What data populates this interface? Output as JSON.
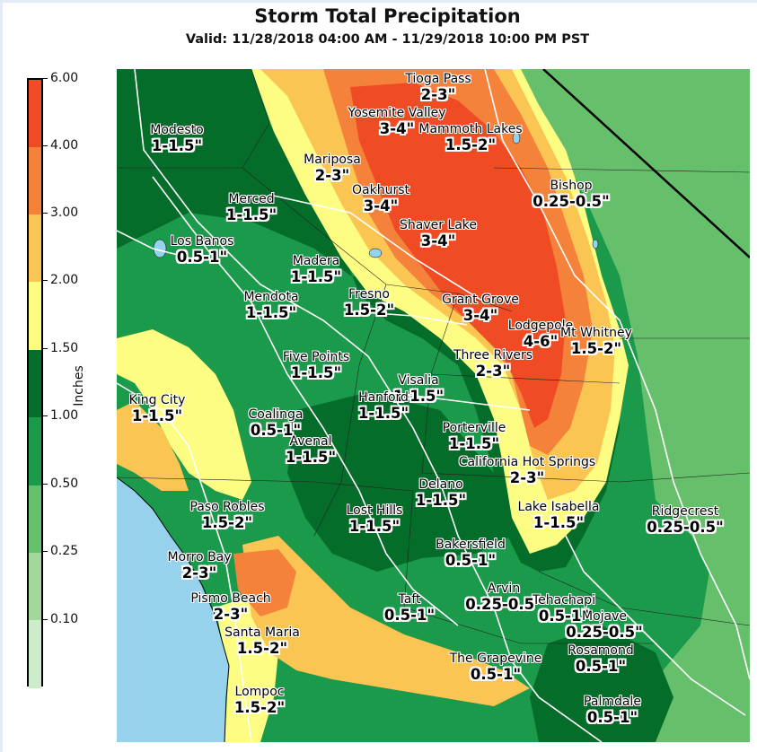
{
  "title": "Storm Total Precipitation",
  "subtitle": "Valid: 11/28/2018 04:00 AM - 11/29/2018 10:00 PM PST",
  "legend": {
    "label": "Inches",
    "ticks": [
      "6.00",
      "4.00",
      "3.00",
      "2.00",
      "1.50",
      "1.00",
      "0.50",
      "0.25",
      "0.10"
    ],
    "colors": [
      "#ef4b24",
      "#f5823b",
      "#fbc554",
      "#fdfd84",
      "#056d2a",
      "#1b9a4b",
      "#66bf6a",
      "#a2d899",
      "#cceccb"
    ]
  },
  "locations": [
    {
      "name": "Tioga Pass",
      "amount": "2-3\""
    },
    {
      "name": "Yosemite Valley",
      "amount": "3-4\""
    },
    {
      "name": "Mammoth Lakes",
      "amount": "1.5-2\""
    },
    {
      "name": "Modesto",
      "amount": "1-1.5\""
    },
    {
      "name": "Mariposa",
      "amount": "2-3\""
    },
    {
      "name": "Bishop",
      "amount": "0.25-0.5\""
    },
    {
      "name": "Oakhurst",
      "amount": "3-4\""
    },
    {
      "name": "Merced",
      "amount": "1-1.5\""
    },
    {
      "name": "Shaver Lake",
      "amount": "3-4\""
    },
    {
      "name": "Los Banos",
      "amount": "0.5-1\""
    },
    {
      "name": "Madera",
      "amount": "1-1.5\""
    },
    {
      "name": "Fresno",
      "amount": "1.5-2\""
    },
    {
      "name": "Mendota",
      "amount": "1-1.5\""
    },
    {
      "name": "Grant Grove",
      "amount": "3-4\""
    },
    {
      "name": "Lodgepole",
      "amount": "4-6\""
    },
    {
      "name": "Mt Whitney",
      "amount": "1.5-2\""
    },
    {
      "name": "Five Points",
      "amount": "1-1.5\""
    },
    {
      "name": "Three Rivers",
      "amount": "2-3\""
    },
    {
      "name": "Visalia",
      "amount": "1-1.5\""
    },
    {
      "name": "Hanford",
      "amount": "1-1.5\""
    },
    {
      "name": "King City",
      "amount": "1-1.5\""
    },
    {
      "name": "Coalinga",
      "amount": "0.5-1\""
    },
    {
      "name": "Porterville",
      "amount": "1-1.5\""
    },
    {
      "name": "Avenal",
      "amount": "1-1.5\""
    },
    {
      "name": "California Hot Springs",
      "amount": "2-3\""
    },
    {
      "name": "Delano",
      "amount": "1-1.5\""
    },
    {
      "name": "Paso Robles",
      "amount": "1.5-2\""
    },
    {
      "name": "Lost Hills",
      "amount": "1-1.5\""
    },
    {
      "name": "Lake Isabella",
      "amount": "1-1.5\""
    },
    {
      "name": "Ridgecrest",
      "amount": "0.25-0.5\""
    },
    {
      "name": "Bakersfield",
      "amount": "0.5-1\""
    },
    {
      "name": "Morro Bay",
      "amount": "2-3\""
    },
    {
      "name": "Arvin",
      "amount": "0.25-0.5\""
    },
    {
      "name": "Tehachapi",
      "amount": "0.5-1\""
    },
    {
      "name": "Mojave",
      "amount": "0.25-0.5\""
    },
    {
      "name": "Pismo Beach",
      "amount": "2-3\""
    },
    {
      "name": "Taft",
      "amount": "0.5-1\""
    },
    {
      "name": "Santa Maria",
      "amount": "1.5-2\""
    },
    {
      "name": "The Grapevine",
      "amount": "0.5-1\""
    },
    {
      "name": "Rosamond",
      "amount": "0.5-1\""
    },
    {
      "name": "Lompoc",
      "amount": "1.5-2\""
    },
    {
      "name": "Palmdale",
      "amount": "0.5-1\""
    }
  ]
}
